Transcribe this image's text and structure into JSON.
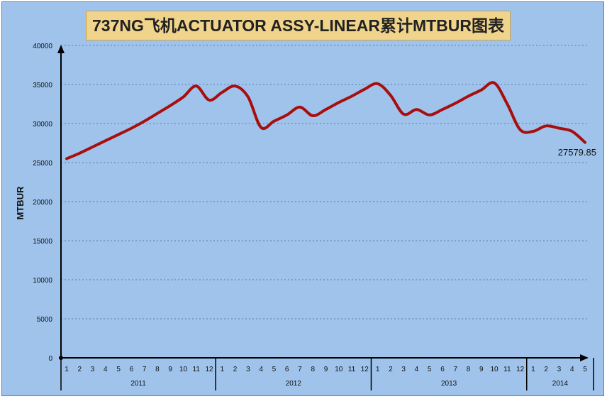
{
  "title": "737NG飞机ACTUATOR ASSY-LINEAR累计MTBUR图表",
  "chart_data": {
    "type": "line",
    "title": "737NG飞机ACTUATOR ASSY-LINEAR累计MTBUR图表",
    "ylabel": "MTBUR",
    "xlabel": "",
    "ylim": [
      0,
      40000
    ],
    "yticks": [
      0,
      5000,
      10000,
      15000,
      20000,
      25000,
      30000,
      35000,
      40000
    ],
    "grid": "horizontal dotted",
    "x": [
      "1",
      "2",
      "3",
      "4",
      "5",
      "6",
      "7",
      "8",
      "9",
      "10",
      "11",
      "12",
      "1",
      "2",
      "3",
      "4",
      "5",
      "6",
      "7",
      "8",
      "9",
      "10",
      "11",
      "12",
      "1",
      "2",
      "3",
      "4",
      "5",
      "6",
      "7",
      "8",
      "9",
      "10",
      "11",
      "12",
      "1",
      "2",
      "3",
      "4",
      "5"
    ],
    "year_groups": [
      {
        "label": "2011",
        "count": 12
      },
      {
        "label": "2012",
        "count": 12
      },
      {
        "label": "2013",
        "count": 12
      },
      {
        "label": "2014",
        "count": 5
      }
    ],
    "series": [
      {
        "color": "#a80e0e",
        "values": [
          25500,
          26200,
          27000,
          27800,
          28600,
          29400,
          30300,
          31300,
          32300,
          33400,
          34800,
          33000,
          34000,
          34800,
          33400,
          29500,
          30300,
          31100,
          32100,
          31000,
          31800,
          32700,
          33500,
          34400,
          35100,
          33600,
          31200,
          31800,
          31100,
          31800,
          32600,
          33500,
          34300,
          35200,
          32500,
          29200,
          29000,
          29700,
          29400,
          29000,
          27579.85
        ]
      }
    ],
    "annotations": [
      {
        "text": "27579.85"
      }
    ]
  }
}
